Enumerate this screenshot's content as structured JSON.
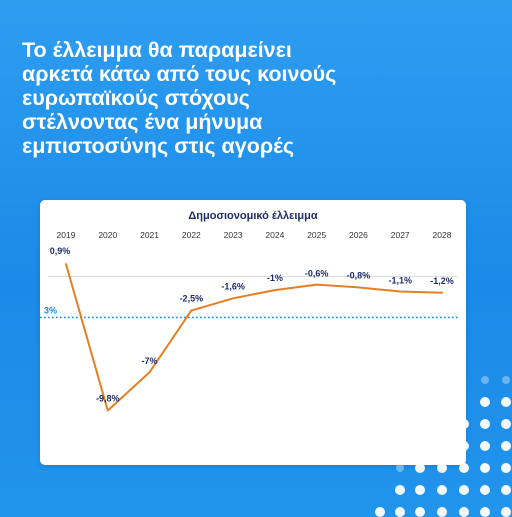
{
  "headline": [
    "Το έλλειμμα θα παραμείνει",
    "αρκετά κάτω από τους κοινούς",
    "ευρωπαϊκούς στόχους",
    "στέλνοντας ένα μήνυμα",
    "εμπιστοσύνης στις αγορές"
  ],
  "colors": {
    "background": "#1f8fea",
    "line": "#e67e22",
    "label": "#1f2d6b",
    "reference": "#1a8ae8",
    "tick": "#333333"
  },
  "chart_data": {
    "type": "line",
    "title": "Δημοσιονομικό έλλειμμα",
    "x": [
      "2019",
      "2020",
      "2021",
      "2022",
      "2023",
      "2024",
      "2025",
      "2026",
      "2027",
      "2028"
    ],
    "series": [
      {
        "values": [
          0.9,
          -9.8,
          -7,
          -2.5,
          -1.6,
          -1,
          -0.6,
          -0.8,
          -1.1,
          -1.2
        ],
        "labels": [
          "0,9%",
          "-9,8%",
          "-7%",
          "-2,5%",
          "-1,6%",
          "-1%",
          "-0,6%",
          "-0,8%",
          "-1,1%",
          "-1,2%"
        ]
      }
    ],
    "reference_line": {
      "value": -3,
      "label": "3%",
      "style": "dotted"
    },
    "zero_line": true,
    "ylim": [
      -10.5,
      1.5
    ],
    "grid": false,
    "x_axis_position": "top"
  }
}
